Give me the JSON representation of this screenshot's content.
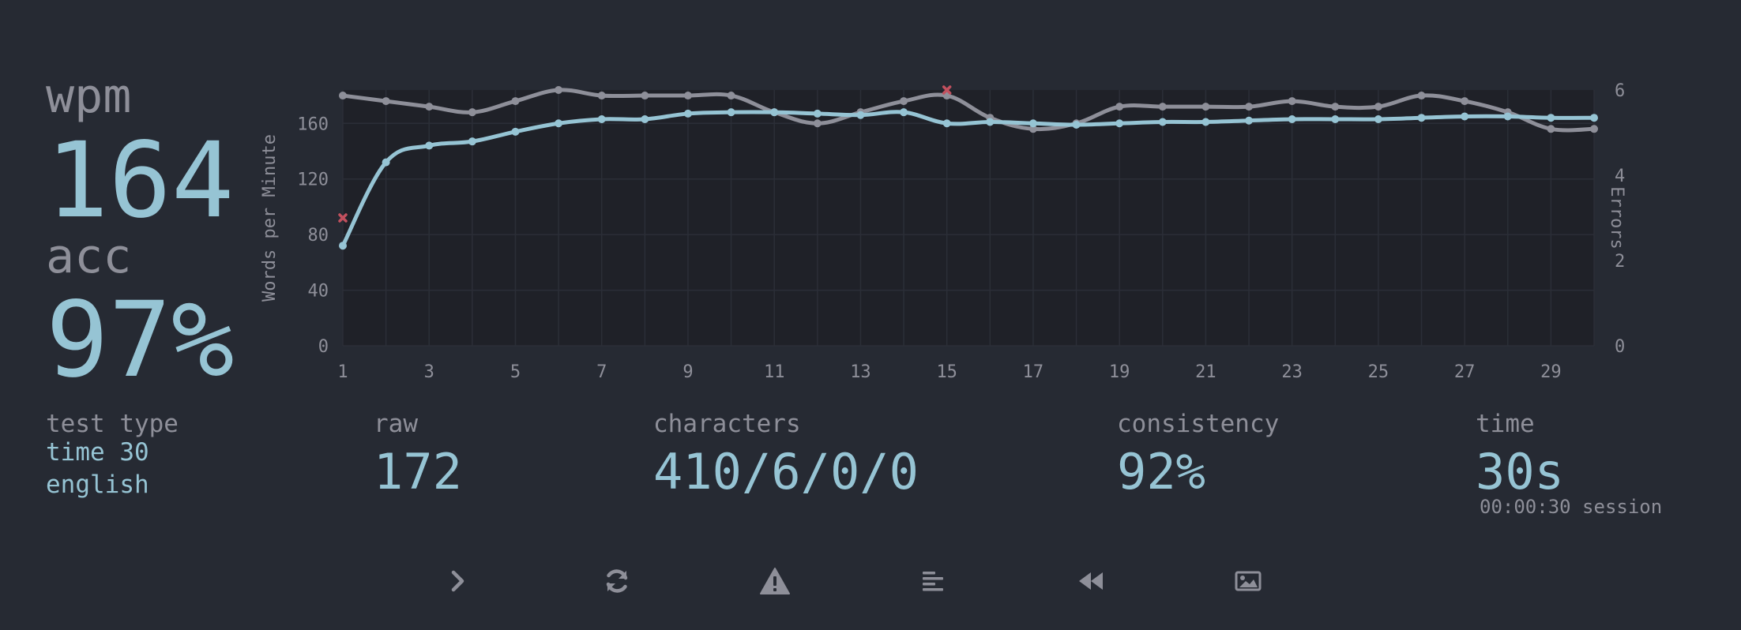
{
  "stats": {
    "wpm_label": "wpm",
    "wpm": "164",
    "acc_label": "acc",
    "acc": "97%"
  },
  "details": {
    "test_type_label": "test type",
    "test_type_mode": "time 30",
    "test_type_language": "english",
    "raw_label": "raw",
    "raw": "172",
    "characters_label": "characters",
    "characters": "410/6/0/0",
    "consistency_label": "consistency",
    "consistency": "92%",
    "time_label": "time",
    "time": "30s",
    "session": "00:00:30 session"
  },
  "buttons": {
    "next_icon": "chevron-right-icon",
    "restart_icon": "refresh-icon",
    "report_icon": "warning-icon",
    "words_icon": "align-left-icon",
    "replay_icon": "backward-icon",
    "screenshot_icon": "image-icon"
  },
  "colors": {
    "background": "#262a33",
    "plot_background": "#1f2128",
    "wpm_line": "#96c4d4",
    "raw_line": "#8e8f99",
    "error_mark": "#c2505e",
    "text_main": "#96c4d4",
    "text_sub": "#8e8f99"
  },
  "chart_data": {
    "type": "line",
    "x": [
      1,
      2,
      3,
      4,
      5,
      6,
      7,
      8,
      9,
      10,
      11,
      12,
      13,
      14,
      15,
      16,
      17,
      18,
      19,
      20,
      21,
      22,
      23,
      24,
      25,
      26,
      27,
      28,
      29,
      30
    ],
    "x_ticks": [
      1,
      3,
      5,
      7,
      9,
      11,
      13,
      15,
      17,
      19,
      21,
      23,
      25,
      27,
      29
    ],
    "xlim": [
      1,
      30
    ],
    "ylabel": "Words per Minute",
    "ylim": [
      0,
      184
    ],
    "y_ticks": [
      0,
      40,
      80,
      120,
      160
    ],
    "y2label": "Errors",
    "y2lim": [
      0,
      6
    ],
    "y2_ticks": [
      0,
      2,
      4,
      6
    ],
    "grid": true,
    "series": [
      {
        "values": [
          72,
          132,
          144,
          147,
          154,
          160,
          163,
          163,
          167,
          168,
          168,
          167,
          166,
          168,
          160,
          161,
          160,
          159,
          160,
          161,
          161,
          162,
          163,
          163,
          163,
          164,
          165,
          165,
          164,
          164
        ]
      },
      {
        "values": [
          180,
          176,
          172,
          168,
          176,
          184,
          180,
          180,
          180,
          180,
          168,
          160,
          168,
          176,
          180,
          164,
          156,
          160,
          172,
          172,
          172,
          172,
          176,
          172,
          172,
          180,
          176,
          168,
          156,
          156
        ]
      }
    ],
    "errors": [
      {
        "x": 1,
        "errors": 3
      },
      {
        "x": 15,
        "errors": 6
      }
    ]
  }
}
